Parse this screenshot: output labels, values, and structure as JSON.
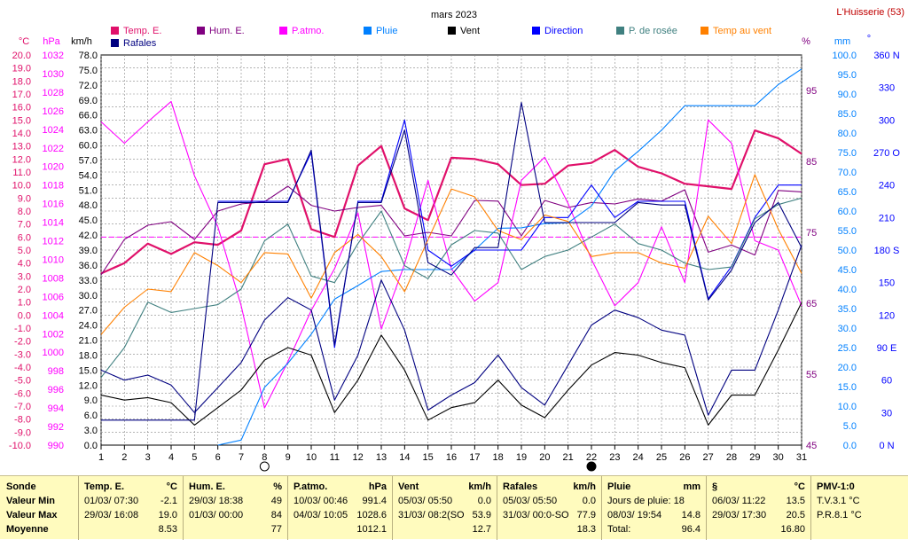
{
  "title": "mars 2023",
  "station": "L'Huisserie (53)",
  "colors": {
    "temp": "#e0106a",
    "hum": "#800080",
    "patm": "#ff00ff",
    "pluie": "#0080ff",
    "vent": "#000000",
    "direction": "#0000ff",
    "rosee": "#408080",
    "tempvent": "#ff8000",
    "rafales": "#000080"
  },
  "axes": {
    "temp": {
      "unit": "°C",
      "min": -10,
      "max": 20,
      "step": 1
    },
    "hpa": {
      "unit": "hPa",
      "min": 990,
      "max": 1032,
      "step": 2
    },
    "kmh": {
      "unit": "km/h",
      "min": 0,
      "max": 78,
      "step": 3
    },
    "hum": {
      "unit": "%",
      "min": 45,
      "max": 100,
      "ticks": [
        45,
        55,
        65,
        75,
        85,
        95
      ]
    },
    "mm": {
      "unit": "mm",
      "min": 0,
      "max": 100,
      "step": 5
    },
    "deg": {
      "unit": "°",
      "min": 0,
      "max": 360,
      "step": 30,
      "named": {
        "0": "N",
        "90": "E",
        "180": "S",
        "270": "O",
        "360": "N"
      }
    },
    "x_days": [
      1,
      2,
      3,
      4,
      5,
      6,
      7,
      8,
      9,
      10,
      11,
      12,
      13,
      14,
      15,
      16,
      17,
      18,
      19,
      20,
      21,
      22,
      23,
      24,
      25,
      26,
      27,
      28,
      29,
      30,
      31
    ]
  },
  "legend": [
    {
      "key": "temp",
      "label": "Temp. E."
    },
    {
      "key": "hum",
      "label": "Hum. E."
    },
    {
      "key": "patm",
      "label": "P.atmo."
    },
    {
      "key": "pluie",
      "label": "Pluie"
    },
    {
      "key": "vent",
      "label": "Vent"
    },
    {
      "key": "direction",
      "label": "Direction"
    },
    {
      "key": "rosee",
      "label": "P. de rosée"
    },
    {
      "key": "tempvent",
      "label": "Temp au vent"
    },
    {
      "key": "rafales",
      "label": "Rafales"
    }
  ],
  "moon_phases": [
    {
      "day": 8,
      "phase": "full"
    },
    {
      "day": 22,
      "phase": "new"
    }
  ],
  "chart_data": {
    "type": "line",
    "x": [
      1,
      2,
      3,
      4,
      5,
      6,
      7,
      8,
      9,
      10,
      11,
      12,
      13,
      14,
      15,
      16,
      17,
      18,
      19,
      20,
      21,
      22,
      23,
      24,
      25,
      26,
      27,
      28,
      29,
      30,
      31
    ],
    "reference_line": {
      "axis": "temp",
      "value": 6.0
    },
    "series": [
      {
        "key": "temp",
        "name": "Temp. E.",
        "axis": "temp",
        "values": [
          3.2,
          4.0,
          5.5,
          4.7,
          5.6,
          5.4,
          6.5,
          11.6,
          12.0,
          6.6,
          6.0,
          11.5,
          13.0,
          8.2,
          7.3,
          12.1,
          12.0,
          11.6,
          10.0,
          10.1,
          11.5,
          11.7,
          12.7,
          11.4,
          10.9,
          10.1,
          9.9,
          9.7,
          14.2,
          13.6,
          12.4
        ]
      },
      {
        "key": "hum",
        "name": "Hum. E.",
        "axis": "hum",
        "values": [
          69,
          74,
          76,
          76.5,
          74,
          78,
          79,
          79.3,
          81.5,
          78.8,
          78,
          78.5,
          78.8,
          74.5,
          75,
          74.5,
          79.5,
          79.4,
          74.5,
          79.5,
          78.5,
          79.2,
          79,
          79.7,
          79.4,
          81,
          72.2,
          73.2,
          71.8,
          80.9,
          80.7
        ]
      },
      {
        "key": "patm",
        "name": "P.atmo.",
        "axis": "hpa",
        "values": [
          1024.8,
          1022.5,
          1024.8,
          1027.0,
          1019.0,
          1013.5,
          1005.0,
          994.0,
          999.0,
          1004.5,
          1009.0,
          1015.0,
          1002.5,
          1009.5,
          1018.5,
          1009.0,
          1005.5,
          1007.5,
          1018.5,
          1021.0,
          1016.0,
          1010.0,
          1005.0,
          1007.5,
          1013.5,
          1007.5,
          1025.0,
          1022.5,
          1012.0,
          1011.0,
          1005.0
        ]
      },
      {
        "key": "pluie",
        "name": "Pluie",
        "axis": "mm",
        "values": [
          null,
          null,
          null,
          null,
          null,
          0.0,
          1.3,
          14.8,
          21.0,
          28.4,
          37.4,
          40.9,
          44.5,
          45.0,
          45.0,
          45.0,
          50.0,
          55.6,
          55.7,
          56.8,
          57.0,
          61.3,
          70.3,
          75.3,
          80.7,
          87.0,
          87.0,
          87.0,
          87.0,
          92.4,
          96.4
        ]
      },
      {
        "key": "vent",
        "name": "Vent",
        "axis": "kmh",
        "values": [
          10.0,
          9.0,
          9.5,
          8.5,
          4.0,
          7.5,
          11.0,
          17.0,
          19.5,
          18.0,
          6.5,
          13.0,
          22.0,
          15.0,
          5.0,
          7.5,
          8.5,
          13.0,
          8.0,
          5.5,
          11.0,
          16.0,
          18.5,
          18.0,
          16.5,
          15.5,
          4.0,
          10.0,
          10.0,
          19.0,
          28.5
        ]
      },
      {
        "key": "direction",
        "name": "Direction",
        "axis": "deg",
        "values": [
          null,
          null,
          null,
          null,
          null,
          225,
          225,
          225,
          225,
          270,
          90,
          225,
          225,
          300,
          180,
          165,
          180,
          180,
          180,
          210,
          210,
          240,
          210,
          225,
          225,
          225,
          135,
          165,
          210,
          240,
          240
        ]
      },
      {
        "key": "rosee",
        "name": "P. de rosée",
        "axis": "temp",
        "values": [
          -4.8,
          -2.5,
          1.0,
          0.2,
          0.5,
          0.8,
          2.0,
          5.7,
          7.0,
          3.0,
          2.5,
          5.5,
          8.0,
          3.8,
          2.8,
          5.4,
          6.5,
          6.3,
          3.5,
          4.5,
          5.0,
          6.0,
          7.0,
          5.5,
          5.0,
          4.0,
          3.5,
          3.7,
          7.4,
          8.5,
          9.0
        ]
      },
      {
        "key": "tempvent",
        "name": "Temp au vent",
        "axis": "temp",
        "values": [
          -1.5,
          0.6,
          2.0,
          1.8,
          4.8,
          3.8,
          2.5,
          4.8,
          4.7,
          1.3,
          4.8,
          6.2,
          4.5,
          1.8,
          5.8,
          9.7,
          9.1,
          6.5,
          5.8,
          7.7,
          7.2,
          4.5,
          4.8,
          4.8,
          4.0,
          3.6,
          7.6,
          5.5,
          10.8,
          6.6,
          3.2
        ]
      },
      {
        "key": "rafales",
        "name": "Rafales",
        "axis": "kmh",
        "values": [
          5.0,
          5.0,
          5.0,
          5.0,
          5.0,
          48.5,
          48.5,
          48.5,
          48.5,
          59.0,
          20.0,
          48.5,
          48.5,
          63.0,
          36.5,
          34.0,
          39.5,
          39.5,
          68.5,
          44.5,
          44.5,
          44.5,
          44.5,
          48.5,
          48.0,
          48.0,
          29.0,
          35.0,
          44.5,
          48.5,
          39.5
        ]
      },
      {
        "key": "rafales_low",
        "name": "Rafales",
        "axis": "kmh",
        "values": [
          15.0,
          13.0,
          14.0,
          12.0,
          6.5,
          11.5,
          16.5,
          25.0,
          29.5,
          27.0,
          9.0,
          18.0,
          33.0,
          23.0,
          7.0,
          10.0,
          12.5,
          18.0,
          11.5,
          8.0,
          16.0,
          24.0,
          27.0,
          25.5,
          23.0,
          22.0,
          6.0,
          15.0,
          15.0,
          27.0,
          40.0
        ]
      }
    ]
  },
  "summary": {
    "row_labels": {
      "col": "Sonde",
      "min": "Valeur Min",
      "max": "Valeur Max",
      "avg": "Moyenne"
    },
    "temp": {
      "title": "Temp. E.",
      "unit": "°C",
      "min_date": "01/03/  07:30",
      "min_val": "-2.1",
      "max_date": "29/03/  16:08",
      "max_val": "19.0",
      "avg": "8.53"
    },
    "hum": {
      "title": "Hum. E.",
      "unit": "%",
      "min_date": "29/03/  18:38",
      "min_val": "49",
      "max_date": "01/03/  00:00",
      "max_val": "84",
      "avg": "77"
    },
    "patm": {
      "title": "P.atmo.",
      "unit": "hPa",
      "min_date": "10/03/  00:46",
      "min_val": "991.4",
      "max_date": "04/03/  10:05",
      "max_val": "1028.6",
      "avg": "1012.1"
    },
    "vent": {
      "title": "Vent",
      "unit": "km/h",
      "min_date": "05/03/  05:50",
      "min_val": "0.0",
      "max_date": "31/03/  08:2(SO",
      "max_val": "53.9",
      "avg": "12.7"
    },
    "rafales": {
      "title": "Rafales",
      "unit": "km/h",
      "min_date": "05/03/  05:50",
      "min_val": "0.0",
      "max_date": "31/03/  00:0-SO",
      "max_val": "77.9",
      "avg": "18.3"
    },
    "pluie": {
      "title": "Pluie",
      "unit": "mm",
      "days_label": "Jours de pluie: 18",
      "max_date": "08/03/  19:54",
      "max_val": "14.8",
      "total_label": "Total:",
      "total_val": "96.4"
    },
    "temp2": {
      "title": "§",
      "unit": "°C",
      "min_date": "06/03/  11:22",
      "min_val": "13.5",
      "max_date": "29/03/  17:30",
      "max_val": "20.5",
      "avg": "16.80"
    },
    "pmv": {
      "title": "PMV-1:0",
      "line1": "T.V.3.1 °C",
      "line2": "P.R.8.1 °C"
    }
  }
}
